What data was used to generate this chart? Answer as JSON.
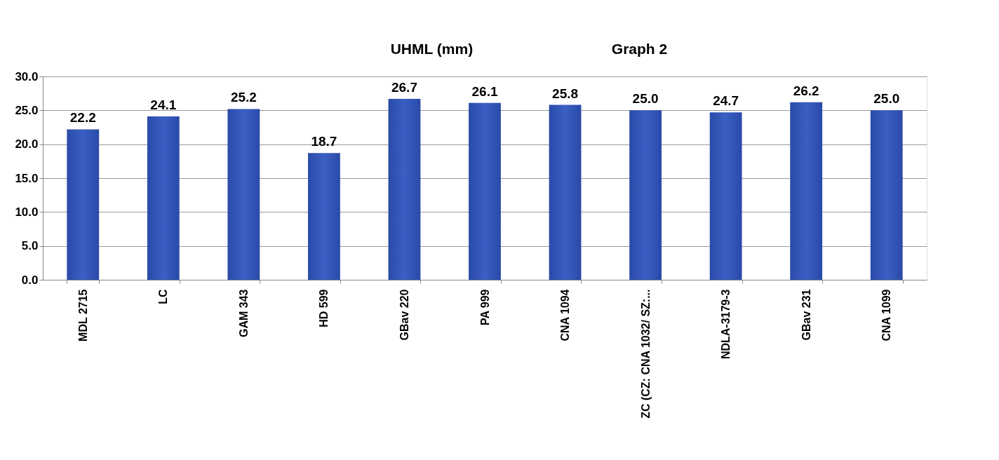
{
  "chart_data": {
    "type": "bar",
    "title": "UHML (mm)",
    "annotations": [
      "Graph 2"
    ],
    "categories": [
      "MDL 2715",
      "LC",
      "GAM 343",
      "HD 599",
      "GBav 220",
      "PA 999",
      "CNA 1094",
      "ZC (CZ: CNA 1032/ SZ:...",
      "NDLA-3179-3",
      "GBav 231",
      "CNA 1099"
    ],
    "values": [
      22.2,
      24.1,
      25.2,
      18.7,
      26.7,
      26.1,
      25.8,
      25.0,
      24.7,
      26.2,
      25.0
    ],
    "color": "#3a5fc4",
    "ylim": [
      0,
      30
    ],
    "yticks": [
      {
        "value": 0,
        "label": "0.0"
      },
      {
        "value": 5,
        "label": "5.0"
      },
      {
        "value": 10,
        "label": "10.0"
      },
      {
        "value": 15,
        "label": "15.0"
      },
      {
        "value": 20,
        "label": "20.0"
      },
      {
        "value": 25,
        "label": "25.0"
      },
      {
        "value": 30,
        "label": "30.0"
      }
    ],
    "grid": "y",
    "value_labels": [
      "22.2",
      "24.1",
      "25.2",
      "18.7",
      "26.7",
      "26.1",
      "25.8",
      "25.0",
      "24.7",
      "26.2",
      "25.0"
    ]
  }
}
